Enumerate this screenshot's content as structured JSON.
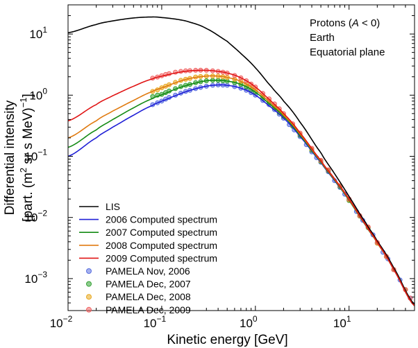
{
  "chart_data": {
    "type": "line",
    "xscale": "log",
    "yscale": "log",
    "xlim": [
      0.01,
      50
    ],
    "ylim": [
      0.0003,
      30
    ],
    "xlabel": "Kinetic energy [GeV]",
    "ylabel": {
      "line1": "Differential intensity",
      "line2_prefix": "[part. (m",
      "line2_sup": "2",
      "line2_mid": " sr s MeV)",
      "line2_sup2": "−1",
      "line2_suffix": "]"
    },
    "annotations": {
      "line1_prefix": "Protons (",
      "line1_italic": "A",
      "line1_suffix": " < 0)",
      "line2": "Earth",
      "line3": "Equatorial plane"
    },
    "x_ticks": [
      {
        "value": 0.01,
        "base": "10",
        "exp": "−2"
      },
      {
        "value": 0.1,
        "base": "10",
        "exp": "−1"
      },
      {
        "value": 1,
        "base": "10",
        "exp": "0"
      },
      {
        "value": 10,
        "base": "10",
        "exp": "1"
      }
    ],
    "y_ticks": [
      {
        "value": 0.001,
        "base": "10",
        "exp": "−3"
      },
      {
        "value": 0.01,
        "base": "10",
        "exp": "−2"
      },
      {
        "value": 0.1,
        "base": "10",
        "exp": "−1"
      },
      {
        "value": 1,
        "base": "10",
        "exp": "0"
      },
      {
        "value": 10,
        "base": "10",
        "exp": "1"
      }
    ],
    "series": [
      {
        "name": "LIS",
        "kind": "line",
        "color": "#000000",
        "x": [
          0.01,
          0.02,
          0.03,
          0.05,
          0.08,
          0.1,
          0.15,
          0.2,
          0.3,
          0.5,
          0.7,
          1,
          1.5,
          2,
          3,
          5,
          7,
          10,
          15,
          20,
          30,
          50
        ],
        "y": [
          10.5,
          14.3,
          16.4,
          18.3,
          19.0,
          18.6,
          17.3,
          15.6,
          12.3,
          7.6,
          4.8,
          2.8,
          1.35,
          0.8,
          0.36,
          0.115,
          0.052,
          0.022,
          0.0083,
          0.0041,
          0.0015,
          0.00038
        ]
      },
      {
        "name": "2006 Computed spectrum",
        "kind": "line",
        "color": "#1f1fd6",
        "x": [
          0.01,
          0.02,
          0.03,
          0.05,
          0.08,
          0.1,
          0.15,
          0.2,
          0.3,
          0.4,
          0.5,
          0.7,
          1,
          1.5,
          2,
          3,
          5,
          7,
          10,
          15,
          20,
          30,
          50
        ],
        "y": [
          0.1,
          0.2,
          0.3,
          0.47,
          0.68,
          0.8,
          1.02,
          1.2,
          1.4,
          1.47,
          1.45,
          1.3,
          1.0,
          0.62,
          0.42,
          0.21,
          0.08,
          0.04,
          0.019,
          0.0075,
          0.0038,
          0.0014,
          0.00036
        ]
      },
      {
        "name": "2007 Computed spectrum",
        "kind": "line",
        "color": "#138a13",
        "x": [
          0.01,
          0.02,
          0.03,
          0.05,
          0.08,
          0.1,
          0.15,
          0.2,
          0.3,
          0.4,
          0.5,
          0.7,
          1,
          1.5,
          2,
          3,
          5,
          7,
          10,
          15,
          20,
          30,
          50
        ],
        "y": [
          0.14,
          0.27,
          0.4,
          0.62,
          0.88,
          1.02,
          1.3,
          1.5,
          1.72,
          1.75,
          1.7,
          1.5,
          1.12,
          0.67,
          0.45,
          0.22,
          0.082,
          0.041,
          0.019,
          0.0075,
          0.0038,
          0.0014,
          0.00036
        ]
      },
      {
        "name": "2008 Computed spectrum",
        "kind": "line",
        "color": "#e07a10",
        "x": [
          0.01,
          0.02,
          0.03,
          0.05,
          0.08,
          0.1,
          0.15,
          0.2,
          0.3,
          0.4,
          0.5,
          0.7,
          1,
          1.5,
          2,
          3,
          5,
          7,
          10,
          15,
          20,
          30,
          50
        ],
        "y": [
          0.2,
          0.38,
          0.55,
          0.82,
          1.15,
          1.32,
          1.65,
          1.88,
          2.05,
          2.05,
          1.95,
          1.68,
          1.22,
          0.72,
          0.47,
          0.23,
          0.084,
          0.042,
          0.0195,
          0.0076,
          0.0038,
          0.0014,
          0.00036
        ]
      },
      {
        "name": "2009 Computed spectrum",
        "kind": "line",
        "color": "#e01414",
        "x": [
          0.01,
          0.02,
          0.03,
          0.05,
          0.08,
          0.1,
          0.15,
          0.2,
          0.3,
          0.4,
          0.5,
          0.7,
          1,
          1.5,
          2,
          3,
          5,
          7,
          10,
          15,
          20,
          30,
          50
        ],
        "y": [
          0.38,
          0.7,
          0.98,
          1.4,
          1.85,
          2.05,
          2.35,
          2.5,
          2.55,
          2.45,
          2.3,
          1.92,
          1.36,
          0.78,
          0.5,
          0.24,
          0.086,
          0.043,
          0.02,
          0.0077,
          0.0039,
          0.0014,
          0.00036
        ]
      },
      {
        "name": "PAMELA Nov, 2006",
        "kind": "scatter",
        "color": "#5a6fe0",
        "x": [
          0.08,
          0.09,
          0.1,
          0.11,
          0.12,
          0.14,
          0.16,
          0.18,
          0.2,
          0.23,
          0.26,
          0.3,
          0.35,
          0.4,
          0.45,
          0.5,
          0.6,
          0.7,
          0.8,
          0.9,
          1.0,
          1.2,
          1.4,
          1.6,
          1.8,
          2.0,
          2.3,
          2.6,
          3.0,
          3.5,
          4.0,
          4.5,
          5.0,
          6.0,
          7.0,
          8.0,
          9.0,
          10,
          12,
          14,
          16,
          18,
          20,
          23,
          26,
          30,
          35,
          40,
          45
        ],
        "y": [
          0.7,
          0.75,
          0.8,
          0.86,
          0.92,
          1.0,
          1.08,
          1.15,
          1.2,
          1.28,
          1.34,
          1.4,
          1.45,
          1.47,
          1.46,
          1.45,
          1.38,
          1.3,
          1.2,
          1.1,
          1.0,
          0.82,
          0.7,
          0.58,
          0.49,
          0.42,
          0.33,
          0.27,
          0.21,
          0.155,
          0.118,
          0.095,
          0.08,
          0.056,
          0.04,
          0.031,
          0.024,
          0.019,
          0.0125,
          0.009,
          0.0068,
          0.0052,
          0.0038,
          0.0027,
          0.0021,
          0.0014,
          0.00095,
          0.00066,
          0.00048
        ]
      },
      {
        "name": "PAMELA Dec, 2007",
        "kind": "scatter",
        "color": "#32a032",
        "x": [
          0.08,
          0.09,
          0.1,
          0.11,
          0.12,
          0.14,
          0.16,
          0.18,
          0.2,
          0.23,
          0.26,
          0.3,
          0.35,
          0.4,
          0.45,
          0.5,
          0.6,
          0.7,
          0.8,
          0.9,
          1.0,
          1.2,
          1.4,
          1.6,
          1.8,
          2.0,
          2.5,
          3.0,
          4.0,
          5.0,
          6.0,
          8.0,
          10,
          13,
          16,
          20,
          25,
          30,
          40
        ],
        "y": [
          0.95,
          1.0,
          1.03,
          1.1,
          1.17,
          1.28,
          1.38,
          1.45,
          1.5,
          1.6,
          1.66,
          1.72,
          1.75,
          1.75,
          1.72,
          1.7,
          1.6,
          1.5,
          1.35,
          1.22,
          1.12,
          0.9,
          0.75,
          0.62,
          0.52,
          0.45,
          0.31,
          0.22,
          0.125,
          0.082,
          0.058,
          0.032,
          0.019,
          0.0105,
          0.0068,
          0.0038,
          0.0023,
          0.0014,
          0.00066
        ]
      },
      {
        "name": "PAMELA Dec, 2008",
        "kind": "scatter",
        "color": "#e8a81e",
        "x": [
          0.08,
          0.09,
          0.1,
          0.11,
          0.12,
          0.14,
          0.16,
          0.18,
          0.2,
          0.23,
          0.26,
          0.3,
          0.35,
          0.4,
          0.45,
          0.5,
          0.6,
          0.7,
          0.8,
          0.9,
          1.0,
          1.2,
          1.4,
          1.6,
          1.8,
          2.0,
          2.5,
          3.0,
          4.0,
          5.0,
          6.0,
          8.0,
          10,
          13,
          16,
          20,
          25,
          30,
          40
        ],
        "y": [
          1.15,
          1.22,
          1.32,
          1.4,
          1.48,
          1.62,
          1.75,
          1.82,
          1.88,
          1.98,
          2.02,
          2.05,
          2.06,
          2.05,
          2.0,
          1.95,
          1.82,
          1.68,
          1.5,
          1.35,
          1.22,
          0.97,
          0.8,
          0.66,
          0.55,
          0.47,
          0.32,
          0.23,
          0.13,
          0.084,
          0.059,
          0.033,
          0.0195,
          0.0106,
          0.0069,
          0.0038,
          0.0023,
          0.0014,
          0.00066
        ]
      },
      {
        "name": "PAMELA Dec, 2009",
        "kind": "scatter",
        "color": "#f06464",
        "x": [
          0.08,
          0.09,
          0.1,
          0.11,
          0.12,
          0.14,
          0.16,
          0.18,
          0.2,
          0.23,
          0.26,
          0.3,
          0.35,
          0.4,
          0.45,
          0.5,
          0.6,
          0.7,
          0.8,
          0.9,
          1.0,
          1.2,
          1.4,
          1.6,
          1.8,
          2.0,
          2.5,
          3.0,
          4.0,
          5.0,
          6.0,
          8.0,
          10,
          13,
          16,
          20,
          25,
          30,
          40,
          45
        ],
        "y": [
          1.9,
          1.98,
          2.08,
          2.18,
          2.25,
          2.38,
          2.45,
          2.5,
          2.52,
          2.55,
          2.56,
          2.55,
          2.5,
          2.45,
          2.38,
          2.3,
          2.1,
          1.92,
          1.72,
          1.52,
          1.36,
          1.07,
          0.87,
          0.72,
          0.6,
          0.5,
          0.34,
          0.24,
          0.135,
          0.086,
          0.06,
          0.033,
          0.02,
          0.0107,
          0.007,
          0.0039,
          0.0023,
          0.0014,
          0.00066,
          0.00048
        ]
      }
    ],
    "legend": {
      "placement": "bottom-left",
      "entries": [
        {
          "label": "LIS",
          "kind": "line",
          "color": "#000000"
        },
        {
          "label": "2006 Computed spectrum",
          "kind": "line",
          "color": "#1f1fd6"
        },
        {
          "label": "2007 Computed spectrum",
          "kind": "line",
          "color": "#138a13"
        },
        {
          "label": "2008 Computed spectrum",
          "kind": "line",
          "color": "#e07a10"
        },
        {
          "label": "2009 Computed spectrum",
          "kind": "line",
          "color": "#e01414"
        },
        {
          "label": "PAMELA Nov, 2006",
          "kind": "marker",
          "color": "#5a6fe0"
        },
        {
          "label": "PAMELA Dec, 2007",
          "kind": "marker",
          "color": "#32a032"
        },
        {
          "label": "PAMELA Dec, 2008",
          "kind": "marker",
          "color": "#e8a81e"
        },
        {
          "label": "PAMELA Dec, 2009",
          "kind": "marker",
          "color": "#f06464"
        }
      ]
    }
  }
}
